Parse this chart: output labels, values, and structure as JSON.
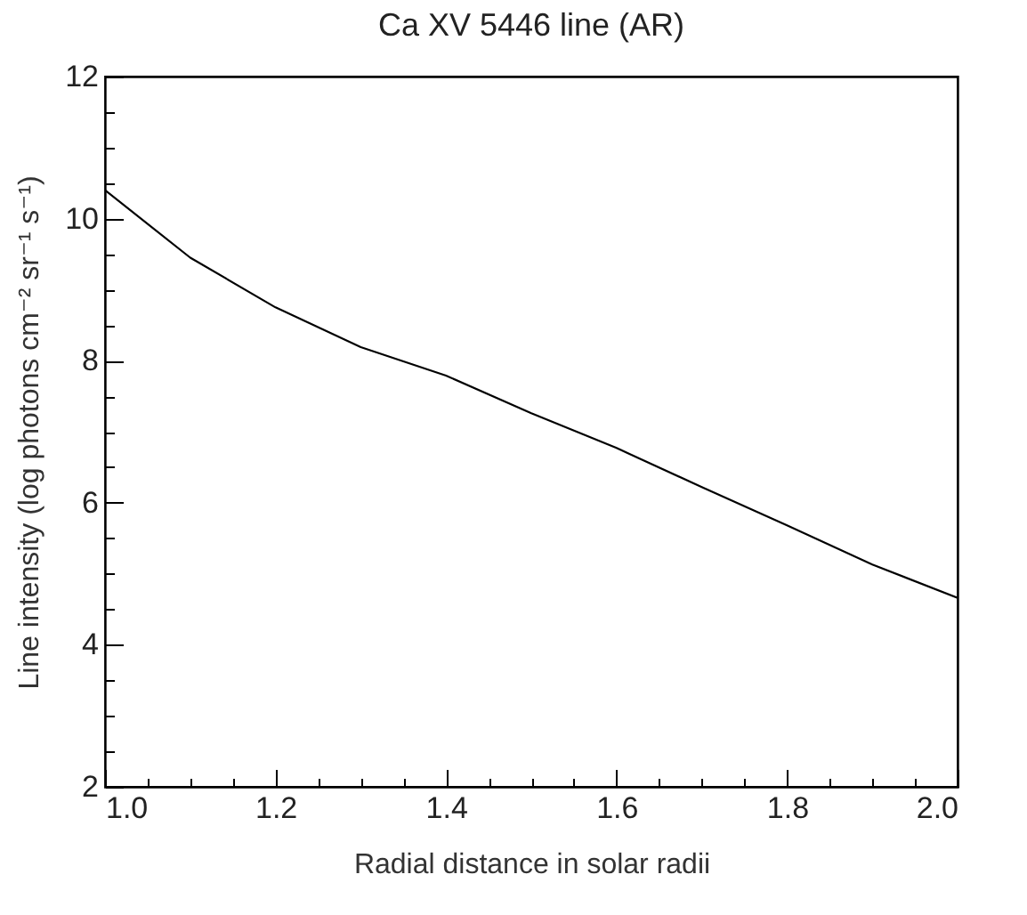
{
  "chart_data": {
    "type": "line",
    "title": "Ca XV 5446 line (AR)",
    "xlabel": "Radial distance in solar radii",
    "ylabel": "Line intensity (log photons  cm⁻² sr⁻¹ s⁻¹)",
    "x": [
      1.0,
      1.1,
      1.2,
      1.3,
      1.4,
      1.5,
      1.6,
      1.7,
      1.8,
      1.9,
      2.0
    ],
    "series": [
      {
        "color": "#000000",
        "values": [
          10.4,
          9.45,
          8.75,
          8.19,
          7.79,
          7.26,
          6.77,
          6.22,
          5.68,
          5.13,
          4.66
        ]
      }
    ],
    "xlim": [
      1.0,
      2.0
    ],
    "ylim": [
      2,
      12
    ],
    "xticks": [
      {
        "value": 1.0,
        "label": "1.0"
      },
      {
        "value": 1.05,
        "label": null
      },
      {
        "value": 1.1,
        "label": null
      },
      {
        "value": 1.15,
        "label": null
      },
      {
        "value": 1.2,
        "label": "1.2"
      },
      {
        "value": 1.25,
        "label": null
      },
      {
        "value": 1.3,
        "label": null
      },
      {
        "value": 1.35,
        "label": null
      },
      {
        "value": 1.4,
        "label": "1.4"
      },
      {
        "value": 1.45,
        "label": null
      },
      {
        "value": 1.5,
        "label": null
      },
      {
        "value": 1.55,
        "label": null
      },
      {
        "value": 1.6,
        "label": "1.6"
      },
      {
        "value": 1.65,
        "label": null
      },
      {
        "value": 1.7,
        "label": null
      },
      {
        "value": 1.75,
        "label": null
      },
      {
        "value": 1.8,
        "label": "1.8"
      },
      {
        "value": 1.85,
        "label": null
      },
      {
        "value": 1.9,
        "label": null
      },
      {
        "value": 1.95,
        "label": null
      },
      {
        "value": 2.0,
        "label": "2.0"
      }
    ],
    "yticks": [
      2,
      {
        "value": 2.5,
        "label": null
      },
      {
        "value": 3,
        "label": null
      },
      {
        "value": 3.5,
        "label": null
      },
      4,
      {
        "value": 4.5,
        "label": null
      },
      {
        "value": 5,
        "label": null
      },
      {
        "value": 5.5,
        "label": null
      },
      6,
      {
        "value": 6.5,
        "label": null
      },
      {
        "value": 7,
        "label": null
      },
      {
        "value": 7.5,
        "label": null
      },
      8,
      {
        "value": 8.5,
        "label": null
      },
      {
        "value": 9,
        "label": null
      },
      {
        "value": 9.5,
        "label": null
      },
      10,
      {
        "value": 10.5,
        "label": null
      },
      {
        "value": 11,
        "label": null
      },
      {
        "value": 11.5,
        "label": null
      },
      12
    ],
    "grid": false,
    "marker": "none",
    "line_style": "solid"
  }
}
